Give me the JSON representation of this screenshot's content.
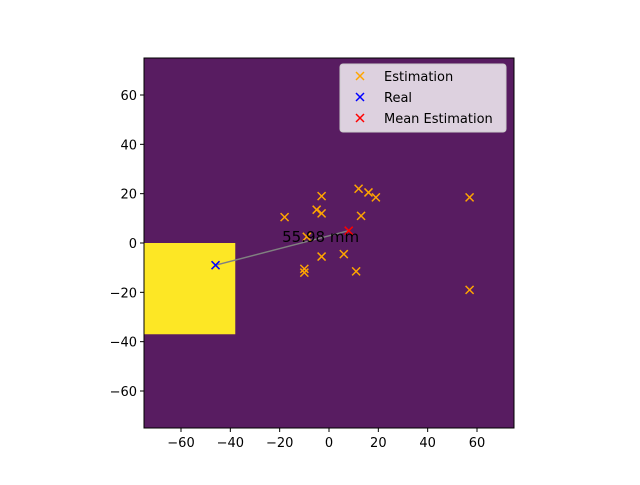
{
  "chart_data": {
    "type": "scatter",
    "xlim": [
      -75,
      75
    ],
    "ylim": [
      -75,
      75
    ],
    "xticks": [
      -60,
      -40,
      -20,
      0,
      20,
      40,
      60
    ],
    "yticks": [
      -60,
      -40,
      -20,
      0,
      20,
      40,
      60
    ],
    "xtick_labels": [
      "−60",
      "−40",
      "−20",
      "0",
      "20",
      "40",
      "60"
    ],
    "ytick_labels": [
      "−60",
      "−40",
      "−20",
      "0",
      "20",
      "40",
      "60"
    ],
    "grid": false,
    "background_color": "#581c61",
    "region": {
      "x": [
        -75,
        -38
      ],
      "y": [
        -37,
        0
      ],
      "color": "#fde725"
    },
    "legend_placement": "top-right",
    "series": [
      {
        "name": "Estimation",
        "color": "#ffa500",
        "marker": "x",
        "points": [
          [
            -18,
            10.5
          ],
          [
            -5,
            13.5
          ],
          [
            -3,
            12
          ],
          [
            -3,
            19
          ],
          [
            12,
            22
          ],
          [
            16,
            20.5
          ],
          [
            19,
            18.5
          ],
          [
            13,
            11
          ],
          [
            -9,
            2.5
          ],
          [
            -10,
            -10.5
          ],
          [
            -10,
            -12
          ],
          [
            -3,
            -5.5
          ],
          [
            6,
            -4.5
          ],
          [
            11,
            -11.5
          ],
          [
            57,
            18.5
          ],
          [
            57,
            -19
          ]
        ]
      },
      {
        "name": "Real",
        "color": "#0000ff",
        "marker": "x",
        "points": [
          [
            -46,
            -9
          ]
        ]
      },
      {
        "name": "Mean Estimation",
        "color": "#ff0000",
        "marker": "x",
        "points": [
          [
            8,
            5
          ]
        ]
      }
    ],
    "connector": {
      "from": [
        -46,
        -9
      ],
      "to": [
        8,
        5
      ],
      "color": "#808080"
    },
    "annotation": {
      "text": "55.98 mm",
      "x": -19,
      "y": 0.5
    }
  }
}
